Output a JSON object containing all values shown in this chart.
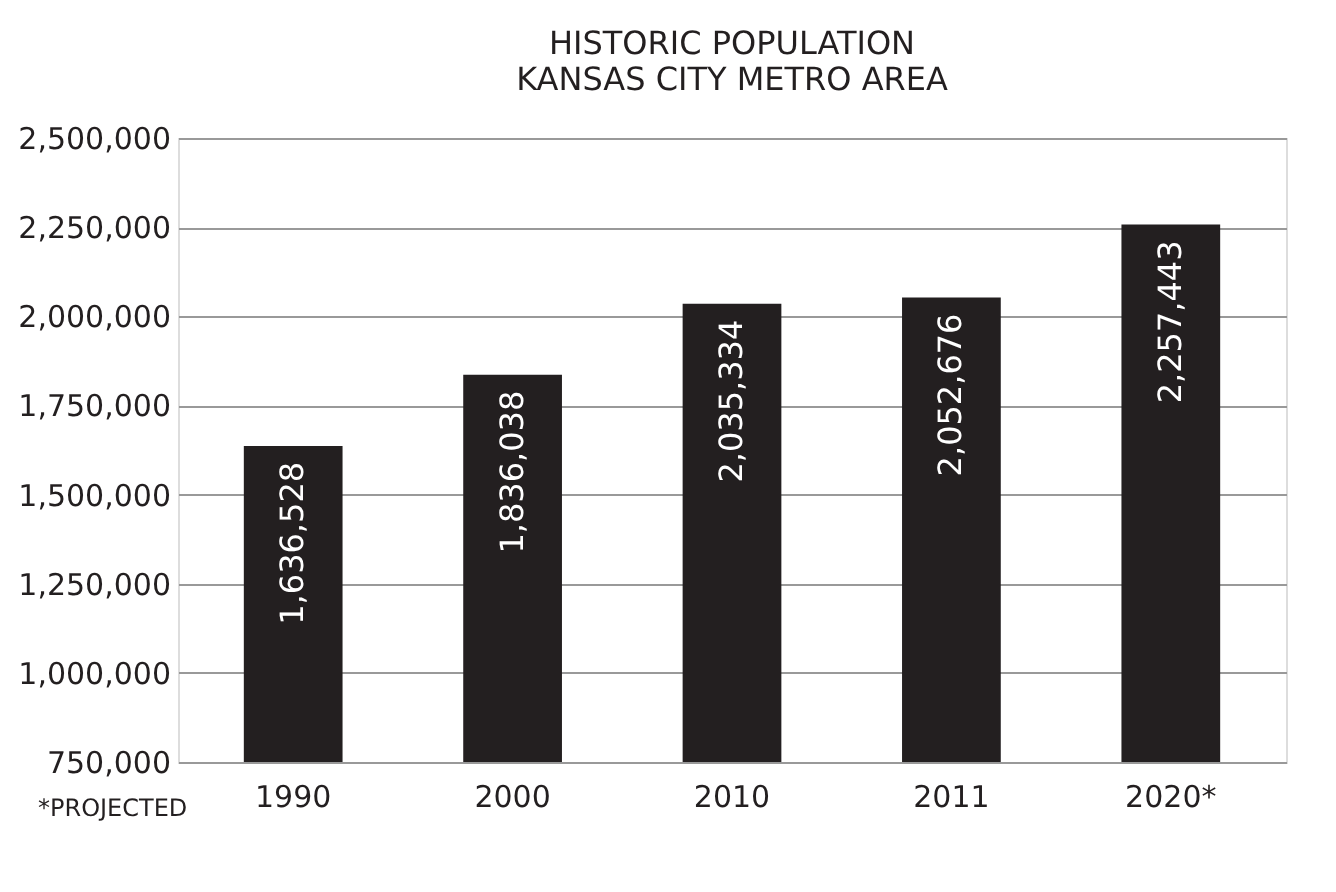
{
  "chart_data": {
    "type": "bar",
    "title": [
      "HISTORIC POPULATION",
      "KANSAS CITY METRO AREA"
    ],
    "categories": [
      "1990",
      "2000",
      "2010",
      "2011",
      "2020*"
    ],
    "values": [
      1636528,
      1836038,
      2035334,
      2052676,
      2257443
    ],
    "value_labels": [
      "1,636,528",
      "1,836,038",
      "2,035,334",
      "2,052,676",
      "2,257,443"
    ],
    "color": "#231f20",
    "ylim": [
      750000,
      2500000
    ],
    "yticks": [
      {
        "value": 750000,
        "label": "750,000"
      },
      {
        "value": 1000000,
        "label": "1,000,000"
      },
      {
        "value": 1250000,
        "label": "1,250,000"
      },
      {
        "value": 1500000,
        "label": "1,500,000"
      },
      {
        "value": 1750000,
        "label": "1,750,000"
      },
      {
        "value": 2000000,
        "label": "2,000,000"
      },
      {
        "value": 2250000,
        "label": "2,250,000"
      },
      {
        "value": 2500000,
        "label": "2,500,000"
      }
    ],
    "grid": "y",
    "annotations": [
      "*PROJECTED"
    ]
  }
}
